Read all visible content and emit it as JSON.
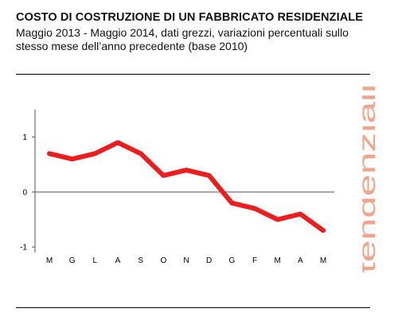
{
  "header": {
    "title": "COSTO DI COSTRUZIONE DI UN FABBRICATO RESIDENZIALE",
    "subtitle": "Maggio 2013 - Maggio 2014, dati grezzi, variazioni percentuali sullo stesso mese dell’anno precedente (base 2010)"
  },
  "side_label": "tendenziali",
  "colors": {
    "series": "#ee1c1c",
    "side_label": "#f2a38a",
    "axis": "#555555"
  },
  "chart_data": {
    "type": "line",
    "title": "COSTO DI COSTRUZIONE DI UN FABBRICATO RESIDENZIALE",
    "subtitle": "Maggio 2013 - Maggio 2014, dati grezzi, variazioni percentuali sullo stesso mese dell’anno precedente (base 2010)",
    "xlabel": "",
    "ylabel": "",
    "categories": [
      "M",
      "G",
      "L",
      "A",
      "S",
      "O",
      "N",
      "D",
      "G",
      "F",
      "M",
      "A",
      "M"
    ],
    "series": [
      {
        "values": [
          0.7,
          0.6,
          0.7,
          0.9,
          0.7,
          0.3,
          0.4,
          0.3,
          -0.2,
          -0.3,
          -0.5,
          -0.4,
          -0.7
        ]
      }
    ],
    "ylim": [
      -1.1,
      1.5
    ],
    "yticks": [
      -1,
      0,
      1
    ],
    "ytick_labels": [
      "-1",
      "0",
      "1"
    ],
    "grid": false,
    "zero_line": true
  }
}
